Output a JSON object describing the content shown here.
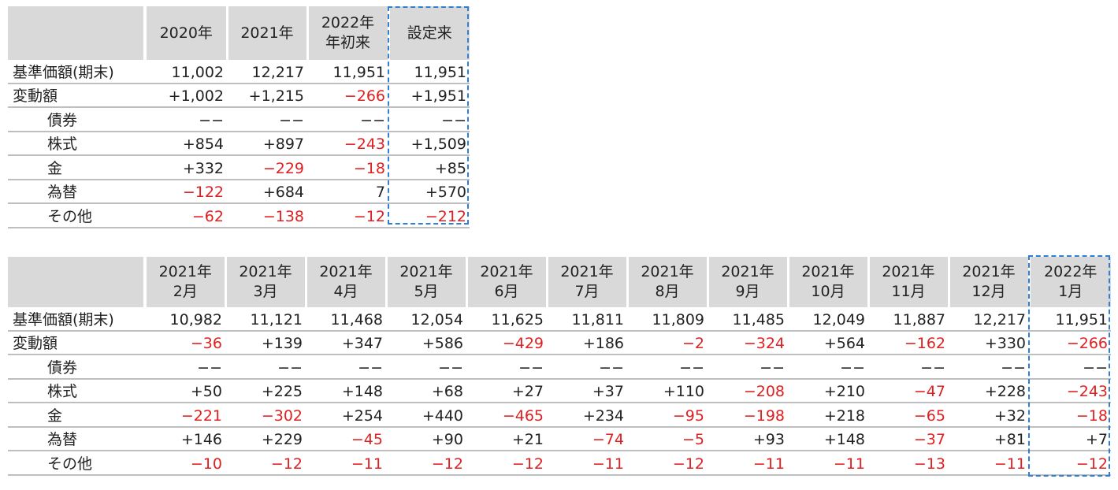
{
  "table1": {
    "headers": [
      "2020年",
      "2021年",
      "2022年\n年初来",
      "設定来"
    ],
    "rows": [
      {
        "label": "基準価額(期末)",
        "sub": false,
        "values": [
          "11,002",
          "12,217",
          "11,951",
          "11,951"
        ],
        "neg": [
          false,
          false,
          false,
          false
        ]
      },
      {
        "label": "変動額",
        "sub": false,
        "values": [
          "+1,002",
          "+1,215",
          "−266",
          "+1,951"
        ],
        "neg": [
          false,
          false,
          true,
          false
        ]
      },
      {
        "label": "債券",
        "sub": true,
        "values": [
          "−−",
          "−−",
          "−−",
          "−−"
        ],
        "neg": [
          false,
          false,
          false,
          false
        ]
      },
      {
        "label": "株式",
        "sub": true,
        "values": [
          "+854",
          "+897",
          "−243",
          "+1,509"
        ],
        "neg": [
          false,
          false,
          true,
          false
        ]
      },
      {
        "label": "金",
        "sub": true,
        "values": [
          "+332",
          "−229",
          "−18",
          "+85"
        ],
        "neg": [
          false,
          true,
          true,
          false
        ]
      },
      {
        "label": "為替",
        "sub": true,
        "values": [
          "−122",
          "+684",
          "7",
          "+570"
        ],
        "neg": [
          true,
          false,
          false,
          false
        ]
      },
      {
        "label": "その他",
        "sub": true,
        "values": [
          "−62",
          "−138",
          "−12",
          "−212"
        ],
        "neg": [
          true,
          true,
          true,
          true
        ]
      }
    ]
  },
  "table2": {
    "headers": [
      "2021年\n2月",
      "2021年\n3月",
      "2021年\n4月",
      "2021年\n5月",
      "2021年\n6月",
      "2021年\n7月",
      "2021年\n8月",
      "2021年\n9月",
      "2021年\n10月",
      "2021年\n11月",
      "2021年\n12月",
      "2022年\n1月"
    ],
    "rows": [
      {
        "label": "基準価額(期末)",
        "sub": false,
        "values": [
          "10,982",
          "11,121",
          "11,468",
          "12,054",
          "11,625",
          "11,811",
          "11,809",
          "11,485",
          "12,049",
          "11,887",
          "12,217",
          "11,951"
        ],
        "neg": [
          false,
          false,
          false,
          false,
          false,
          false,
          false,
          false,
          false,
          false,
          false,
          false
        ]
      },
      {
        "label": "変動額",
        "sub": false,
        "values": [
          "−36",
          "+139",
          "+347",
          "+586",
          "−429",
          "+186",
          "−2",
          "−324",
          "+564",
          "−162",
          "+330",
          "−266"
        ],
        "neg": [
          true,
          false,
          false,
          false,
          true,
          false,
          true,
          true,
          false,
          true,
          false,
          true
        ]
      },
      {
        "label": "債券",
        "sub": true,
        "values": [
          "−−",
          "−−",
          "−−",
          "−−",
          "−−",
          "−−",
          "−−",
          "−−",
          "−−",
          "−−",
          "−−",
          "−−"
        ],
        "neg": [
          false,
          false,
          false,
          false,
          false,
          false,
          false,
          false,
          false,
          false,
          false,
          false
        ]
      },
      {
        "label": "株式",
        "sub": true,
        "values": [
          "+50",
          "+225",
          "+148",
          "+68",
          "+27",
          "+37",
          "+110",
          "−208",
          "+210",
          "−47",
          "+228",
          "−243"
        ],
        "neg": [
          false,
          false,
          false,
          false,
          false,
          false,
          false,
          true,
          false,
          true,
          false,
          true
        ]
      },
      {
        "label": "金",
        "sub": true,
        "values": [
          "−221",
          "−302",
          "+254",
          "+440",
          "−465",
          "+234",
          "−95",
          "−198",
          "+218",
          "−65",
          "+32",
          "−18"
        ],
        "neg": [
          true,
          true,
          false,
          false,
          true,
          false,
          true,
          true,
          false,
          true,
          false,
          true
        ]
      },
      {
        "label": "為替",
        "sub": true,
        "values": [
          "+146",
          "+229",
          "−45",
          "+90",
          "+21",
          "−74",
          "−5",
          "+93",
          "+148",
          "−37",
          "+81",
          "+7"
        ],
        "neg": [
          false,
          false,
          true,
          false,
          false,
          true,
          true,
          false,
          false,
          true,
          false,
          false
        ]
      },
      {
        "label": "その他",
        "sub": true,
        "values": [
          "−10",
          "−12",
          "−11",
          "−12",
          "−12",
          "−11",
          "−12",
          "−11",
          "−11",
          "−13",
          "−11",
          "−12"
        ],
        "neg": [
          true,
          true,
          true,
          true,
          true,
          true,
          true,
          true,
          true,
          true,
          true,
          true
        ]
      }
    ]
  },
  "colors": {
    "negative": "#e02020",
    "header_bg": "#d9d9d9",
    "highlight_border": "#2e7fd8",
    "row_rule": "#bfbfbf"
  }
}
